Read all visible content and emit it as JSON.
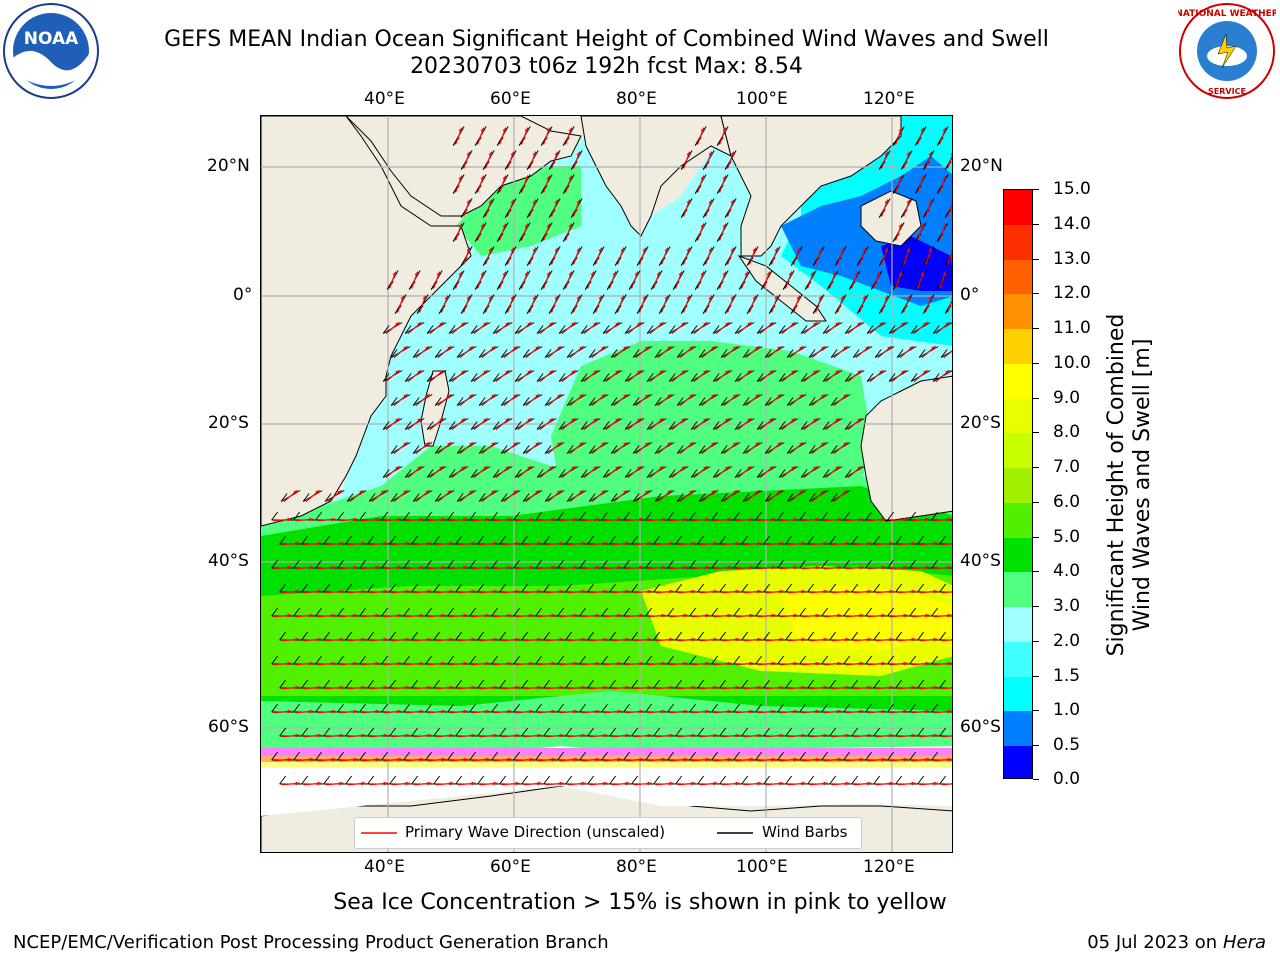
{
  "header": {
    "title_line1": "GEFS MEAN Indian Ocean Significant Height of Combined Wind Waves and Swell",
    "title_line2": "20230703 t06z 192h fcst   Max: 8.54"
  },
  "logos": {
    "left": "noaa-logo",
    "left_text": "NOAA",
    "right": "nws-logo",
    "right_text": "NATIONAL WEATHER SERVICE"
  },
  "map": {
    "lon_ticks": [
      "40°E",
      "60°E",
      "80°E",
      "100°E",
      "120°E"
    ],
    "lat_ticks_left": [
      "20°N",
      "0°",
      "20°S",
      "40°S",
      "60°S"
    ],
    "lat_ticks_right": [
      "20°N",
      "0°",
      "20°S",
      "40°S",
      "60°S"
    ],
    "legend": {
      "wave_label": "Primary Wave Direction (unscaled)",
      "wind_label": "Wind Barbs",
      "wave_color": "#ff0000",
      "wind_color": "#000000"
    }
  },
  "colorbar": {
    "label_line1": "Significant Height of Combined",
    "label_line2": "Wind Waves and Swell [m]",
    "ticks": [
      "0.0",
      "0.5",
      "1.0",
      "1.5",
      "2.0",
      "3.0",
      "4.0",
      "5.0",
      "6.0",
      "7.0",
      "8.0",
      "9.0",
      "10.0",
      "11.0",
      "12.0",
      "13.0",
      "14.0",
      "15.0"
    ],
    "colors": [
      "#0000ff",
      "#0080ff",
      "#00ffff",
      "#40ffff",
      "#a0ffff",
      "#50ff80",
      "#00e000",
      "#50f000",
      "#a0f000",
      "#c8ff00",
      "#e8ff00",
      "#ffff00",
      "#ffd000",
      "#ff9000",
      "#ff6000",
      "#ff3000",
      "#ff0000"
    ]
  },
  "notes": {
    "sea_ice": "Sea Ice Concentration > 15% is shown in pink to yellow"
  },
  "footer": {
    "left": "NCEP/EMC/Verification Post Processing Product Generation Branch",
    "right_date": "05 Jul 2023 on ",
    "right_host": "Hera"
  }
}
